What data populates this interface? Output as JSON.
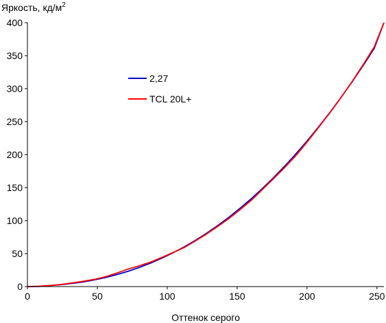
{
  "chart_data": {
    "type": "line",
    "ylabel": "Яркость, кд/м",
    "ylabel_superscript": "2",
    "xlabel": "Оттенок серого",
    "xlim": [
      0,
      255
    ],
    "ylim": [
      0,
      400
    ],
    "xticks": [
      0,
      50,
      100,
      150,
      200,
      250
    ],
    "yticks": [
      0,
      50,
      100,
      150,
      200,
      250,
      300,
      350,
      400
    ],
    "grid": false,
    "legend_position": "upper-left-inside",
    "series": [
      {
        "name": "2,27",
        "color": "#0000cc",
        "x": [
          0,
          8,
          16,
          24,
          32,
          40,
          48,
          56,
          64,
          72,
          80,
          88,
          96,
          104,
          112,
          120,
          128,
          136,
          144,
          152,
          160,
          168,
          176,
          184,
          192,
          200,
          208,
          216,
          224,
          232,
          240,
          248,
          255
        ],
        "y": [
          0,
          0.2,
          1.6,
          2.9,
          4.8,
          7.1,
          10.2,
          13.8,
          18.2,
          23.2,
          29.0,
          35.5,
          42.9,
          51.0,
          60.0,
          69.9,
          80.6,
          92.3,
          104.9,
          118.5,
          133.0,
          148.5,
          165.0,
          182.5,
          201.1,
          220.6,
          241.3,
          263.0,
          285.8,
          309.7,
          334.7,
          360.8,
          400
        ]
      },
      {
        "name": "TCL 20L+",
        "color": "#ff0000",
        "x": [
          0,
          8,
          16,
          24,
          32,
          40,
          48,
          56,
          64,
          72,
          80,
          88,
          96,
          104,
          112,
          120,
          128,
          136,
          144,
          152,
          160,
          168,
          176,
          184,
          192,
          200,
          208,
          216,
          224,
          232,
          240,
          248,
          255
        ],
        "y": [
          0,
          0.5,
          1.5,
          3.2,
          5.5,
          8,
          11,
          15,
          20.5,
          26.5,
          31.5,
          37,
          44,
          51.5,
          59,
          69,
          79.5,
          91,
          103,
          116.5,
          130.5,
          147,
          163.5,
          180.5,
          198.5,
          219,
          240.5,
          262.5,
          285.5,
          310,
          336,
          363,
          400
        ]
      }
    ]
  }
}
